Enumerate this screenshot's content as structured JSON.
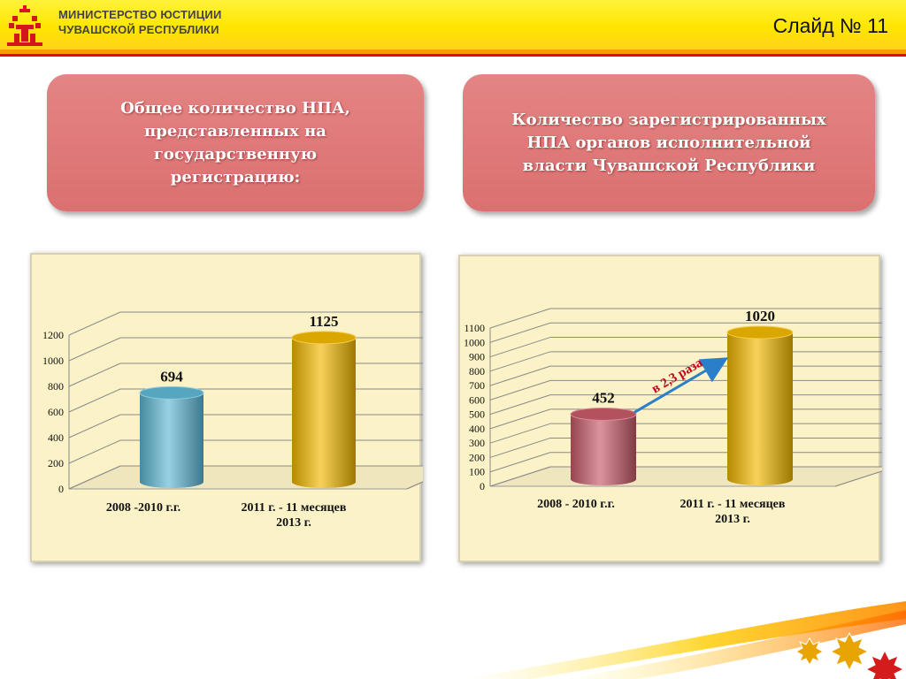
{
  "header": {
    "org_line1": "МИНИСТЕРСТВО ЮСТИЦИИ",
    "org_line2": "ЧУВАШСКОЙ РЕСПУБЛИКИ",
    "slide_number": "Слайд № 11",
    "logo_icon": "chuvash-emblem-icon"
  },
  "colors": {
    "header_yellow": "#ffe600",
    "header_orange_line": "#ff9a00",
    "header_red_line": "#e30613",
    "title_box": "#dd7676",
    "panel_bg": "#fbf2c8",
    "bar_blue": "#5fb8d4",
    "bar_gold": "#f2b800",
    "bar_red": "#c85a6a",
    "arrow_blue": "#2a7fc8",
    "arrow_label_red": "#c0001a"
  },
  "titles": {
    "left": "Общее количество НПА,\nпредставленных на\nгосударственную\nрегистрацию:",
    "right": "Количество зарегистрированных\nНПА органов исполнительной\nвласти Чувашской Республики"
  },
  "chart_data": [
    {
      "type": "bar",
      "categories": [
        "2008 -2010 г.г.",
        "2011 г. - 11 месяцев\n2013 г."
      ],
      "values": [
        694,
        1125
      ],
      "bar_colors": [
        "#5fb8d4",
        "#f2b800"
      ],
      "ylim": [
        0,
        1200
      ],
      "yticks": [
        0,
        200,
        400,
        600,
        800,
        1000,
        1200
      ],
      "data_labels": [
        "694",
        "1125"
      ],
      "grid": true,
      "title": "",
      "xlabel": "",
      "ylabel": ""
    },
    {
      "type": "bar",
      "categories": [
        "2008 - 2010 г.г.",
        "2011 г. - 11 месяцев\n2013 г."
      ],
      "values": [
        452,
        1020
      ],
      "bar_colors": [
        "#c85a6a",
        "#f2b800"
      ],
      "ylim": [
        0,
        1100
      ],
      "yticks": [
        0,
        100,
        200,
        300,
        400,
        500,
        600,
        700,
        800,
        900,
        1000,
        1100
      ],
      "data_labels": [
        "452",
        "1020"
      ],
      "grid": true,
      "annotation": "в 2,3 раза",
      "title": "",
      "xlabel": "",
      "ylabel": ""
    }
  ],
  "footer": {
    "decoration_icon": "chuvash-star-ornament-icon"
  }
}
